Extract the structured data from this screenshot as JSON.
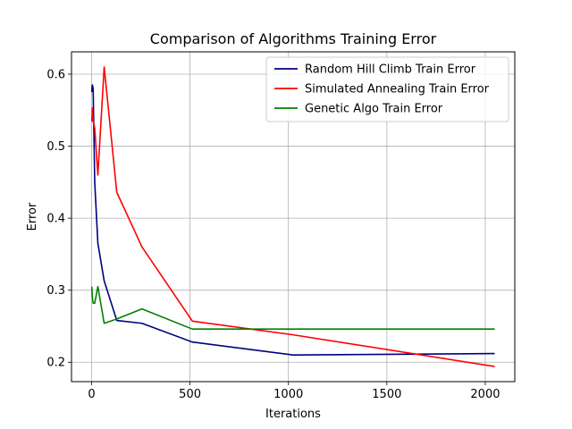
{
  "chart_data": {
    "type": "line",
    "title": "Comparison of Algorithms Training Error",
    "xlabel": "Iterations",
    "ylabel": "Error",
    "xlim": [
      -102,
      2150
    ],
    "ylim": [
      0.173,
      0.631
    ],
    "xticks": [
      0,
      500,
      1000,
      1500,
      2000
    ],
    "yticks": [
      0.2,
      0.3,
      0.4,
      0.5,
      0.6
    ],
    "ytick_labels": [
      "0.2",
      "0.3",
      "0.4",
      "0.5",
      "0.6"
    ],
    "grid": true,
    "legend_position": "top-right",
    "series": [
      {
        "name": "Random Hill Climb Train Error",
        "color": "#000080",
        "x": [
          1,
          2,
          4,
          8,
          16,
          32,
          64,
          128,
          256,
          512,
          1024,
          2048
        ],
        "y": [
          0.575,
          0.58,
          0.585,
          0.58,
          0.45,
          0.365,
          0.313,
          0.258,
          0.254,
          0.228,
          0.21,
          0.212
        ]
      },
      {
        "name": "Simulated Annealing Train Error",
        "color": "#ff0000",
        "x": [
          1,
          2,
          4,
          8,
          16,
          32,
          64,
          128,
          256,
          512,
          1024,
          2048
        ],
        "y": [
          0.54,
          0.535,
          0.553,
          0.535,
          0.525,
          0.46,
          0.61,
          0.436,
          0.36,
          0.257,
          0.238,
          0.194
        ]
      },
      {
        "name": "Genetic Algo Train Error",
        "color": "#008000",
        "x": [
          1,
          2,
          4,
          8,
          16,
          32,
          64,
          128,
          256,
          512,
          1024,
          2048
        ],
        "y": [
          0.305,
          0.3,
          0.29,
          0.282,
          0.282,
          0.305,
          0.254,
          0.26,
          0.274,
          0.246,
          0.246,
          0.246
        ]
      }
    ]
  }
}
